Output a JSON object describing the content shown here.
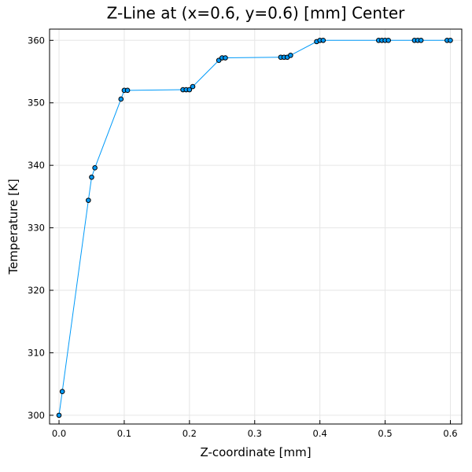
{
  "chart_data": {
    "type": "line",
    "title": "Z-Line at (x=0.6, y=0.6) [mm] Center",
    "xlabel": "Z-coordinate [mm]",
    "ylabel": "Temperature [K]",
    "xlim": [
      -0.0145,
      0.6175
    ],
    "ylim": [
      298.6,
      361.8
    ],
    "xticks": [
      0.0,
      0.1,
      0.2,
      0.3,
      0.4,
      0.5,
      0.6
    ],
    "xtick_labels": [
      "0.0",
      "0.1",
      "0.2",
      "0.3",
      "0.4",
      "0.5",
      "0.6"
    ],
    "yticks": [
      300,
      310,
      320,
      330,
      340,
      350,
      360
    ],
    "ytick_labels": [
      "300",
      "310",
      "320",
      "330",
      "340",
      "350",
      "360"
    ],
    "grid": true,
    "legend": "none",
    "series": [
      {
        "color": "#009af9",
        "marker": "circle",
        "marker_edge": "#000000",
        "x": [
          0.0,
          0.005,
          0.045,
          0.05,
          0.055,
          0.095,
          0.1,
          0.105,
          0.19,
          0.195,
          0.2,
          0.205,
          0.245,
          0.25,
          0.255,
          0.34,
          0.345,
          0.35,
          0.355,
          0.395,
          0.4,
          0.405,
          0.49,
          0.495,
          0.5,
          0.505,
          0.545,
          0.55,
          0.555,
          0.595,
          0.6
        ],
        "y": [
          300.0,
          303.8,
          334.4,
          338.1,
          339.6,
          350.6,
          352.0,
          352.0,
          352.1,
          352.1,
          352.1,
          352.6,
          356.8,
          357.2,
          357.2,
          357.3,
          357.3,
          357.3,
          357.6,
          359.8,
          360.0,
          360.0,
          360.0,
          360.0,
          360.0,
          360.0,
          360.0,
          360.0,
          360.0,
          360.0,
          360.0
        ]
      }
    ]
  }
}
